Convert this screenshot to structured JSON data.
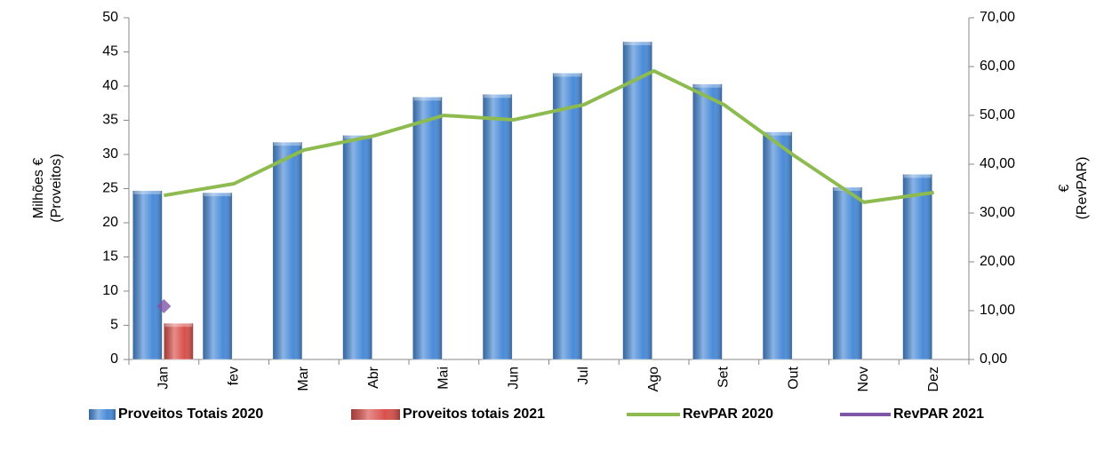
{
  "chart_data": {
    "type": "bar-line",
    "categories": [
      "Jan",
      "fev",
      "Mar",
      "Abr",
      "Mai",
      "Jun",
      "Jul",
      "Ago",
      "Set",
      "Out",
      "Nov",
      "Dez"
    ],
    "series": [
      {
        "name": "Proveitos Totais 2020",
        "color": "#4a8bd8",
        "kind": "bar",
        "values": [
          24.7,
          24.4,
          31.8,
          32.8,
          38.4,
          38.8,
          41.9,
          46.5,
          40.3,
          33.3,
          25.2,
          27.1
        ]
      },
      {
        "name": "Proveitos totais 2021",
        "color": "#d9504c",
        "kind": "bar",
        "values": [
          5.3,
          null,
          null,
          null,
          null,
          null,
          null,
          null,
          null,
          null,
          null,
          null
        ]
      },
      {
        "name": "RevPAR 2020",
        "color": "#8dbb4f",
        "kind": "line",
        "axis": "y2",
        "values": [
          33.6,
          36,
          42.9,
          45.8,
          50,
          49.1,
          52.2,
          59.1,
          52.2,
          41.8,
          32.2,
          34.2
        ]
      },
      {
        "name": "RevPAR 2021",
        "color": "#7f55a8",
        "kind": "line",
        "axis": "y2",
        "values": [
          10.9,
          null,
          null,
          null,
          null,
          null,
          null,
          null,
          null,
          null,
          null,
          null
        ]
      }
    ],
    "ylabel": [
      "Milhões €",
      "(Proveitos)"
    ],
    "y2label": [
      "€",
      "(RevPAR)"
    ],
    "ylim": [
      0,
      50
    ],
    "yticks": [
      0,
      5,
      10,
      15,
      20,
      25,
      30,
      35,
      40,
      45,
      50
    ],
    "y2lim": [
      0,
      70
    ],
    "y2ticks": [
      {
        "value": 0,
        "label": "0,00"
      },
      {
        "value": 10,
        "label": "10,00"
      },
      {
        "value": 20,
        "label": "20,00"
      },
      {
        "value": 30,
        "label": "30,00"
      },
      {
        "value": 40,
        "label": "40,00"
      },
      {
        "value": 50,
        "label": "50,00"
      },
      {
        "value": 60,
        "label": "60,00"
      },
      {
        "value": 70,
        "label": "70,00"
      }
    ],
    "legend": "bottom"
  }
}
